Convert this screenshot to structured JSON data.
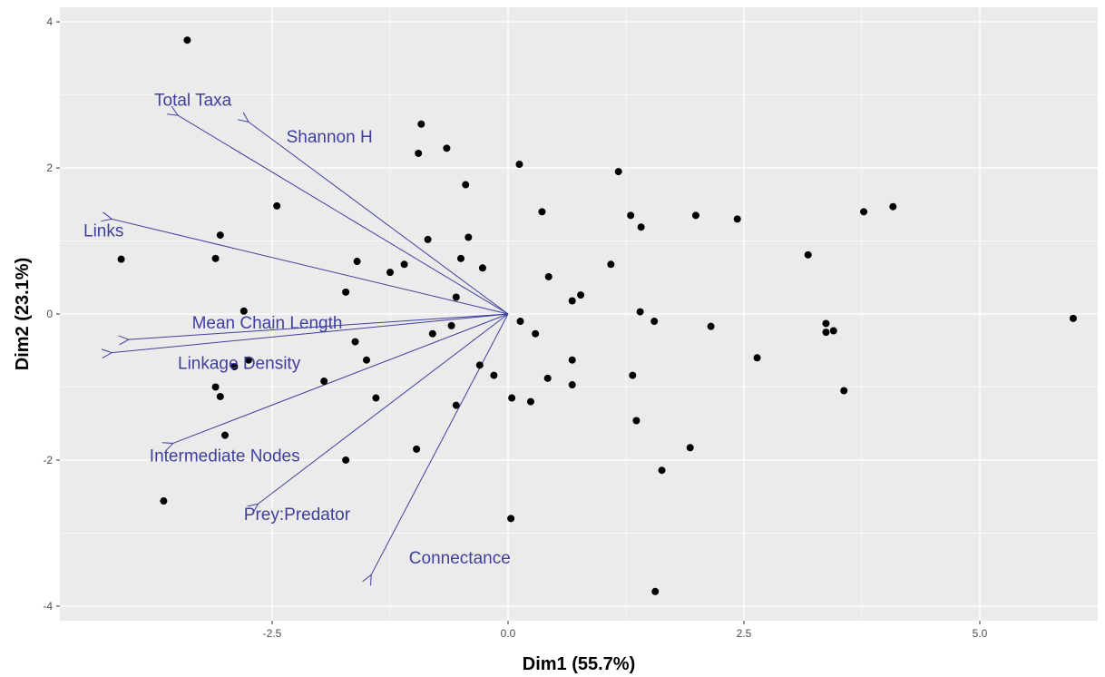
{
  "chart_data": {
    "type": "scatter",
    "xlabel": "Dim1 (55.7%)",
    "ylabel": "Dim2 (23.1%)",
    "xlim": [
      -4.75,
      6.25
    ],
    "ylim": [
      -4.2,
      4.2
    ],
    "x_ticks": [
      {
        "value": -2.5,
        "label": "-2.5"
      },
      {
        "value": 0,
        "label": "0.0"
      },
      {
        "value": 2.5,
        "label": "2.5"
      },
      {
        "value": 5,
        "label": "5.0"
      }
    ],
    "y_ticks": [
      {
        "value": -4,
        "label": "-4"
      },
      {
        "value": -2,
        "label": "-2"
      },
      {
        "value": 0,
        "label": "0"
      },
      {
        "value": 2,
        "label": "2"
      },
      {
        "value": 4,
        "label": "4"
      }
    ],
    "grid": true,
    "colors": {
      "panel": "#ebebeb",
      "grid": "#ffffff",
      "points": "#000000",
      "arrows": "#3f3f9e"
    },
    "points": [
      {
        "x": -3.4,
        "y": 3.75
      },
      {
        "x": -0.92,
        "y": 2.6
      },
      {
        "x": -0.65,
        "y": 2.27
      },
      {
        "x": -0.95,
        "y": 2.2
      },
      {
        "x": 0.12,
        "y": 2.05
      },
      {
        "x": -0.45,
        "y": 1.77
      },
      {
        "x": 1.17,
        "y": 1.95
      },
      {
        "x": -2.45,
        "y": 1.48
      },
      {
        "x": 0.36,
        "y": 1.4
      },
      {
        "x": 1.3,
        "y": 1.35
      },
      {
        "x": 1.41,
        "y": 1.19
      },
      {
        "x": 1.99,
        "y": 1.35
      },
      {
        "x": 2.43,
        "y": 1.3
      },
      {
        "x": 3.77,
        "y": 1.4
      },
      {
        "x": 4.08,
        "y": 1.47
      },
      {
        "x": -3.05,
        "y": 1.08
      },
      {
        "x": -0.85,
        "y": 1.02
      },
      {
        "x": -0.42,
        "y": 1.05
      },
      {
        "x": -4.1,
        "y": 0.75
      },
      {
        "x": -3.1,
        "y": 0.76
      },
      {
        "x": -1.6,
        "y": 0.72
      },
      {
        "x": -1.25,
        "y": 0.57
      },
      {
        "x": -1.1,
        "y": 0.68
      },
      {
        "x": -0.5,
        "y": 0.76
      },
      {
        "x": -0.27,
        "y": 0.63
      },
      {
        "x": 0.43,
        "y": 0.51
      },
      {
        "x": 1.09,
        "y": 0.68
      },
      {
        "x": 3.18,
        "y": 0.81
      },
      {
        "x": -1.72,
        "y": 0.3
      },
      {
        "x": -0.55,
        "y": 0.23
      },
      {
        "x": 0.68,
        "y": 0.18
      },
      {
        "x": 0.77,
        "y": 0.26
      },
      {
        "x": -2.8,
        "y": 0.04
      },
      {
        "x": 1.4,
        "y": 0.03
      },
      {
        "x": 0.13,
        "y": -0.1
      },
      {
        "x": 1.55,
        "y": -0.1
      },
      {
        "x": 2.15,
        "y": -0.17
      },
      {
        "x": 3.37,
        "y": -0.13
      },
      {
        "x": 3.37,
        "y": -0.25
      },
      {
        "x": 3.45,
        "y": -0.23
      },
      {
        "x": 5.99,
        "y": -0.06
      },
      {
        "x": -0.6,
        "y": -0.16
      },
      {
        "x": -0.8,
        "y": -0.27
      },
      {
        "x": 0.29,
        "y": -0.27
      },
      {
        "x": -1.62,
        "y": -0.38
      },
      {
        "x": -1.5,
        "y": -0.63
      },
      {
        "x": -2.9,
        "y": -0.72
      },
      {
        "x": -2.75,
        "y": -0.63
      },
      {
        "x": -0.3,
        "y": -0.7
      },
      {
        "x": -0.15,
        "y": -0.84
      },
      {
        "x": 0.42,
        "y": -0.88
      },
      {
        "x": 0.68,
        "y": -0.63
      },
      {
        "x": 0.68,
        "y": -0.97
      },
      {
        "x": 1.32,
        "y": -0.84
      },
      {
        "x": 2.64,
        "y": -0.6
      },
      {
        "x": 3.56,
        "y": -1.05
      },
      {
        "x": -1.95,
        "y": -0.92
      },
      {
        "x": -3.1,
        "y": -1.0
      },
      {
        "x": -3.05,
        "y": -1.13
      },
      {
        "x": -1.4,
        "y": -1.15
      },
      {
        "x": -0.55,
        "y": -1.25
      },
      {
        "x": 0.04,
        "y": -1.15
      },
      {
        "x": 0.24,
        "y": -1.2
      },
      {
        "x": -3.0,
        "y": -1.66
      },
      {
        "x": 1.36,
        "y": -1.46
      },
      {
        "x": -0.97,
        "y": -1.85
      },
      {
        "x": 1.93,
        "y": -1.83
      },
      {
        "x": -1.72,
        "y": -2.0
      },
      {
        "x": 1.63,
        "y": -2.14
      },
      {
        "x": -3.65,
        "y": -2.56
      },
      {
        "x": 0.03,
        "y": -2.8
      },
      {
        "x": 1.56,
        "y": -3.8
      }
    ],
    "arrows": [
      {
        "label": "Total Taxa",
        "x": -3.5,
        "y": 2.72,
        "label_x": -3.75,
        "label_y": 2.85
      },
      {
        "label": "Shannon H",
        "x": -2.75,
        "y": 2.63,
        "label_x": -2.35,
        "label_y": 2.35
      },
      {
        "label": "Links",
        "x": -4.2,
        "y": 1.3,
        "label_x": -4.5,
        "label_y": 1.06
      },
      {
        "label": "Mean Chain Length",
        "x": -4.02,
        "y": -0.35,
        "label_x": -3.35,
        "label_y": -0.2
      },
      {
        "label": "Linkage Density",
        "x": -4.2,
        "y": -0.53,
        "label_x": -3.5,
        "label_y": -0.75
      },
      {
        "label": "Intermediate Nodes",
        "x": -3.55,
        "y": -1.77,
        "label_x": -3.8,
        "label_y": -2.02
      },
      {
        "label": "Prey:Predator",
        "x": -2.65,
        "y": -2.6,
        "label_x": -2.8,
        "label_y": -2.82
      },
      {
        "label": "Connectance",
        "x": -1.45,
        "y": -3.57,
        "label_x": -1.05,
        "label_y": -3.42
      }
    ]
  }
}
